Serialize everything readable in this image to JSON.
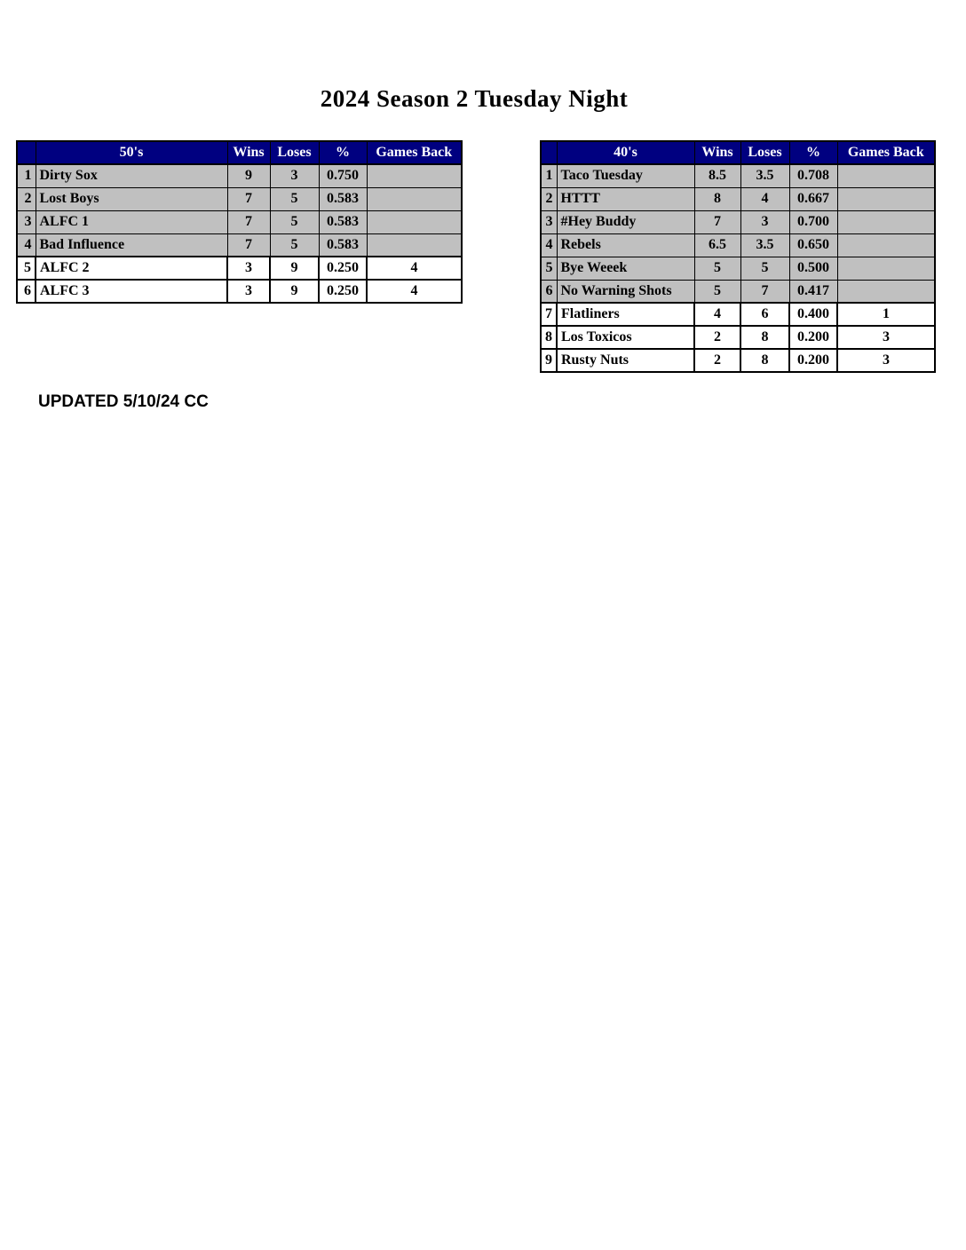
{
  "page": {
    "title": "2024 Season 2 Tuesday Night",
    "footer_note": "UPDATED 5/10/24 CC"
  },
  "colors": {
    "header_bg": "#000080",
    "header_text": "#FFFFFF",
    "row_gray_bg": "#C0C0C0",
    "row_white_bg": "#FFFFFF",
    "border": "#000000"
  },
  "tables": [
    {
      "id": "fifties",
      "headers": {
        "rank": "",
        "division": "50's",
        "wins": "Wins",
        "loses": "Loses",
        "pct": "%",
        "games_back": "Games Back"
      },
      "rows": [
        {
          "rank": "1",
          "team": "Dirty Sox",
          "wins": "9",
          "loses": "3",
          "pct": "0.750",
          "games_back": "",
          "style": "gray"
        },
        {
          "rank": "2",
          "team": "Lost Boys",
          "wins": "7",
          "loses": "5",
          "pct": "0.583",
          "games_back": "",
          "style": "gray"
        },
        {
          "rank": "3",
          "team": "ALFC 1",
          "wins": "7",
          "loses": "5",
          "pct": "0.583",
          "games_back": "",
          "style": "gray"
        },
        {
          "rank": "4",
          "team": "Bad Influence",
          "wins": "7",
          "loses": "5",
          "pct": "0.583",
          "games_back": "",
          "style": "gray"
        },
        {
          "rank": "5",
          "team": "ALFC 2",
          "wins": "3",
          "loses": "9",
          "pct": "0.250",
          "games_back": "4",
          "style": "white"
        },
        {
          "rank": "6",
          "team": "ALFC 3",
          "wins": "3",
          "loses": "9",
          "pct": "0.250",
          "games_back": "4",
          "style": "white"
        }
      ]
    },
    {
      "id": "forties",
      "headers": {
        "rank": "",
        "division": "40's",
        "wins": "Wins",
        "loses": "Loses",
        "pct": "%",
        "games_back": "Games Back"
      },
      "rows": [
        {
          "rank": "1",
          "team": "Taco Tuesday",
          "wins": "8.5",
          "loses": "3.5",
          "pct": "0.708",
          "games_back": "",
          "style": "gray"
        },
        {
          "rank": "2",
          "team": "HTTT",
          "wins": "8",
          "loses": "4",
          "pct": "0.667",
          "games_back": "",
          "style": "gray"
        },
        {
          "rank": "3",
          "team": "#Hey Buddy",
          "wins": "7",
          "loses": "3",
          "pct": "0.700",
          "games_back": "",
          "style": "gray"
        },
        {
          "rank": "4",
          "team": "Rebels",
          "wins": "6.5",
          "loses": "3.5",
          "pct": "0.650",
          "games_back": "",
          "style": "gray"
        },
        {
          "rank": "5",
          "team": "Bye Weeek",
          "wins": "5",
          "loses": "5",
          "pct": "0.500",
          "games_back": "",
          "style": "gray"
        },
        {
          "rank": "6",
          "team": "No Warning Shots",
          "wins": "5",
          "loses": "7",
          "pct": "0.417",
          "games_back": "",
          "style": "gray"
        },
        {
          "rank": "7",
          "team": "Flatliners",
          "wins": "4",
          "loses": "6",
          "pct": "0.400",
          "games_back": "1",
          "style": "white"
        },
        {
          "rank": "8",
          "team": "Los Toxicos",
          "wins": "2",
          "loses": "8",
          "pct": "0.200",
          "games_back": "3",
          "style": "white"
        },
        {
          "rank": "9",
          "team": "Rusty Nuts",
          "wins": "2",
          "loses": "8",
          "pct": "0.200",
          "games_back": "3",
          "style": "white"
        }
      ]
    }
  ]
}
